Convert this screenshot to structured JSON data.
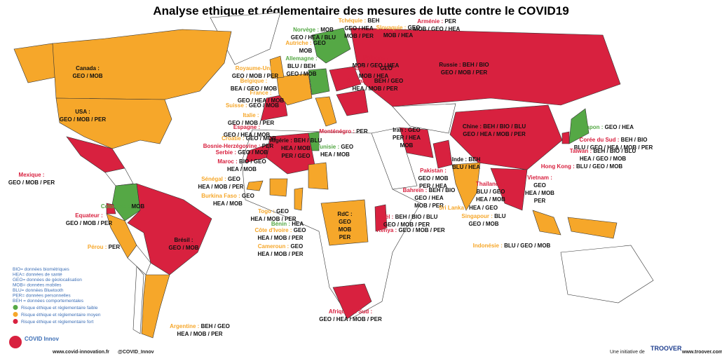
{
  "title": "Analyse ethique et réglementaire des mesures de lutte contre le COVID19",
  "countries": [
    {
      "label": "Canada :",
      "codes": [
        "GEO / MOB"
      ]
    },
    {
      "label": "USA :",
      "codes": [
        "GEO / MOB / PER"
      ]
    },
    {
      "label": "Mexique :",
      "codes": [
        "GEO / MOB / PER"
      ]
    },
    {
      "label": "Equateur :",
      "codes": [
        "GEO / MOB / PER"
      ]
    },
    {
      "label": "Colombie :",
      "codes": [
        "MOB"
      ]
    },
    {
      "label": "Pérou :",
      "codes": [
        "PER"
      ]
    },
    {
      "label": "Brésil :",
      "codes": [
        "GEO / MOB"
      ]
    },
    {
      "label": "Argentine :",
      "codes": [
        "BEH / GEO",
        "HEA / MOB / PER"
      ]
    },
    {
      "label": "Norvège :",
      "codes": [
        "MOB",
        "GEO / HEA / BLU"
      ]
    },
    {
      "label": "Tchéquie :",
      "codes": [
        "BEH",
        "GEO / HEA",
        "MOB / PER"
      ]
    },
    {
      "label": "Slovaquie :",
      "codes": [
        "GEO",
        "MOB / HEA"
      ]
    },
    {
      "label": "Arménie :",
      "codes": [
        "PER",
        "MOB / GEO / HEA"
      ]
    },
    {
      "label": "Autriche :",
      "codes": [
        "GEO",
        "MOB"
      ]
    },
    {
      "label": "Pologne :",
      "codes": [
        "MOB / GEO / HEA"
      ]
    },
    {
      "label": "Allemagne :",
      "codes": [
        "BLU / BEH",
        "GEO / MOB"
      ]
    },
    {
      "label": "Royaume-Uni :",
      "codes": [
        "GEO / MOB / PER"
      ]
    },
    {
      "label": "Belgique :",
      "codes": [
        "BEA / GEO / MOB"
      ]
    },
    {
      "label": "France :",
      "codes": [
        "GEO / HEA / MOB"
      ]
    },
    {
      "label": "Suisse :",
      "codes": [
        "GEO / MOB"
      ]
    },
    {
      "label": "Italie :",
      "codes": [
        "GEO / MOB / PER"
      ]
    },
    {
      "label": "Espagne :",
      "codes": [
        "GEO / HEA / MOB"
      ]
    },
    {
      "label": "Croatie :",
      "codes": [
        "GEO / MOB"
      ]
    },
    {
      "label": "Bosnie-Herzégovine :",
      "codes": [
        "PER"
      ]
    },
    {
      "label": "Serbie :",
      "codes": [
        "GEO / MOB"
      ]
    },
    {
      "label": "Maroc :",
      "codes": [
        "BIO / GEO",
        "HEA / MOB"
      ]
    },
    {
      "label": "Estonie :",
      "codes": [
        "GEO",
        "MOB / HEA"
      ]
    },
    {
      "label": "Bulgarie :",
      "codes": [
        "BEH / GEO",
        "HEA / MOB / PER"
      ]
    },
    {
      "label": "Russie :",
      "codes": [
        "BEH / BIO",
        "GEO / MOB / PER"
      ]
    },
    {
      "label": "Monténégro :",
      "codes": [
        "PER"
      ]
    },
    {
      "label": "Algérie :",
      "codes": [
        "BEH / BLU",
        "HEA / MOB",
        "PER / GEO"
      ]
    },
    {
      "label": "Tunisie :",
      "codes": [
        "GEO",
        "HEA / MOB"
      ]
    },
    {
      "label": "Iran :",
      "codes": [
        "GEO",
        "PER / HEA",
        "MOB"
      ]
    },
    {
      "label": "Chine :",
      "codes": [
        "BEH / BIO / BLU",
        "GEO / HEA / MOB / PER"
      ]
    },
    {
      "label": "Japon :",
      "codes": [
        "GEO / HEA"
      ]
    },
    {
      "label": "Corée du Sud :",
      "codes": [
        "BEH / BIO",
        "BLU / GEO / HEA / MOB / PER"
      ]
    },
    {
      "label": "Taiwan :",
      "codes": [
        "BEH / BIO / BLU",
        "HEA / GEO / MOB"
      ]
    },
    {
      "label": "Hong Kong :",
      "codes": [
        "BLU / GEO / MOB"
      ]
    },
    {
      "label": "Inde :",
      "codes": [
        "BEH",
        "BLU / HEA"
      ]
    },
    {
      "label": "Pakistan :",
      "codes": [
        "GEO / MOB",
        "PER / HEA"
      ]
    },
    {
      "label": "Vietnam :",
      "codes": [
        "GEO",
        "HEA / MOB",
        "PER"
      ]
    },
    {
      "label": "Thaïlande :",
      "codes": [
        "BLU / GEO",
        "HEA / MOB"
      ]
    },
    {
      "label": "Bahreïn :",
      "codes": [
        "BEH / BIO",
        "GEO / HEA",
        "MOB / PER"
      ]
    },
    {
      "label": "Sri Lanka :",
      "codes": [
        "HEA / GEO"
      ]
    },
    {
      "label": "Singapour :",
      "codes": [
        "BLU",
        "GEO / MOB"
      ]
    },
    {
      "label": "Israël :",
      "codes": [
        "BEH / BIO / BLU",
        "GEO / MOB / PER"
      ]
    },
    {
      "label": "Kenya :",
      "codes": [
        "GEO / MOB / PER"
      ]
    },
    {
      "label": "Indonésie :",
      "codes": [
        "BLU / GEO / MOB"
      ]
    },
    {
      "label": "Sénégal :",
      "codes": [
        "GEO",
        "HEA / MOB / PER"
      ]
    },
    {
      "label": "Burkina Faso :",
      "codes": [
        "GEO",
        "HEA / MOB"
      ]
    },
    {
      "label": "Togo :",
      "codes": [
        "GEO",
        "HEA / MOB / PER"
      ]
    },
    {
      "label": "Bénin :",
      "codes": [
        "HEA"
      ]
    },
    {
      "label": "Côte d'Ivoire :",
      "codes": [
        "GEO",
        "HEA / MOB / PER"
      ]
    },
    {
      "label": "Cameroun :",
      "codes": [
        "GEO",
        "HEA / MOB / PER"
      ]
    },
    {
      "label": "RdC :",
      "codes": [
        "GEO",
        "MOB",
        "PER"
      ]
    },
    {
      "label": "Afrique du Sud :",
      "codes": [
        "GEO / HEA / MOB / PER"
      ]
    }
  ],
  "legend": {
    "codes": [
      "BIO= données biométriques",
      "HEA= données de santé",
      "GEO= données de géolocalisation",
      "MOB= données mobiles",
      "BLU= données Bluetooth",
      "PER= données personnelles",
      "BEH = données comportementales"
    ],
    "risks": [
      {
        "label": "Risque éthique et réglementaire faible",
        "color": "#55a845"
      },
      {
        "label": "Risque éthique et réglementaire moyen",
        "color": "#f6a72a"
      },
      {
        "label": "Risque éthique et réglementaire fort",
        "color": "#d8213f"
      }
    ]
  },
  "footer": {
    "logo": "COVID Innov",
    "site": "www.covid-innovation.fr",
    "twitter": "@COVID_Innov",
    "initiative": "Une initiative de",
    "brand": "TROOVER",
    "brand_site": "www.troover.com"
  }
}
